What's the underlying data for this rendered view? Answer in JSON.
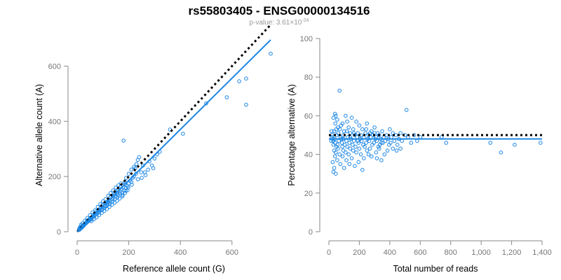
{
  "figure": {
    "title": "rs55803405 - ENSG00000134516",
    "subtitle_prefix": "p-value: 3.61×10",
    "subtitle_exponent": "-24"
  },
  "colors": {
    "points": "#1e88e5",
    "fit_line": "#1e88e5",
    "reference_line": "#000000",
    "axes": "#8a8a8a",
    "tick_labels": "#777777"
  },
  "chart_data": [
    {
      "type": "scatter",
      "title": "",
      "xlabel": "Reference allele count (G)",
      "ylabel": "Alternative allele count (A)",
      "xlim": [
        0,
        750
      ],
      "ylim": [
        0,
        700
      ],
      "x_ticks": [
        0,
        200,
        400,
        600
      ],
      "y_ticks": [
        0,
        200,
        400,
        600
      ],
      "x_tick_labels": [
        "0",
        "200",
        "400",
        "600"
      ],
      "y_tick_labels": [
        "0",
        "200",
        "400",
        "600"
      ],
      "grid": false,
      "legend": "none",
      "reference_line": {
        "style": "dotted",
        "points": [
          [
            0,
            0
          ],
          [
            750,
            750
          ]
        ]
      },
      "fit_line": {
        "style": "solid",
        "points": [
          [
            0,
            0
          ],
          [
            750,
            695
          ]
        ]
      },
      "points": [
        [
          180,
          330
        ],
        [
          750,
          645
        ],
        [
          655,
          460
        ],
        [
          655,
          555
        ],
        [
          628,
          545
        ],
        [
          580,
          487
        ],
        [
          500,
          465
        ],
        [
          410,
          355
        ],
        [
          360,
          370
        ],
        [
          310,
          280
        ],
        [
          300,
          265
        ],
        [
          290,
          240
        ],
        [
          275,
          225
        ],
        [
          265,
          205
        ],
        [
          255,
          240
        ],
        [
          248,
          215
        ],
        [
          240,
          270
        ],
        [
          235,
          260
        ],
        [
          230,
          245
        ],
        [
          225,
          230
        ],
        [
          220,
          200
        ],
        [
          215,
          195
        ],
        [
          210,
          180
        ],
        [
          205,
          185
        ],
        [
          200,
          175
        ],
        [
          195,
          165
        ],
        [
          190,
          158
        ],
        [
          186,
          172
        ],
        [
          182,
          150
        ],
        [
          178,
          160
        ],
        [
          175,
          140
        ],
        [
          172,
          155
        ],
        [
          168,
          162
        ],
        [
          165,
          145
        ],
        [
          160,
          150
        ],
        [
          158,
          133
        ],
        [
          155,
          140
        ],
        [
          150,
          128
        ],
        [
          148,
          145
        ],
        [
          145,
          136
        ],
        [
          140,
          122
        ],
        [
          138,
          130
        ],
        [
          135,
          118
        ],
        [
          130,
          125
        ],
        [
          128,
          110
        ],
        [
          125,
          115
        ],
        [
          120,
          108
        ],
        [
          118,
          100
        ],
        [
          115,
          105
        ],
        [
          110,
          95
        ],
        [
          108,
          102
        ],
        [
          105,
          92
        ],
        [
          100,
          88
        ],
        [
          98,
          96
        ],
        [
          95,
          82
        ],
        [
          90,
          85
        ],
        [
          88,
          78
        ],
        [
          85,
          80
        ],
        [
          80,
          72
        ],
        [
          78,
          68
        ],
        [
          75,
          74
        ],
        [
          70,
          62
        ],
        [
          68,
          66
        ],
        [
          65,
          58
        ],
        [
          60,
          55
        ],
        [
          58,
          52
        ],
        [
          55,
          50
        ],
        [
          52,
          46
        ],
        [
          50,
          48
        ],
        [
          46,
          40
        ],
        [
          45,
          44
        ],
        [
          42,
          37
        ],
        [
          40,
          36
        ],
        [
          38,
          39
        ],
        [
          35,
          31
        ],
        [
          33,
          30
        ],
        [
          30,
          28
        ],
        [
          28,
          25
        ],
        [
          26,
          24
        ],
        [
          24,
          20
        ],
        [
          22,
          23
        ],
        [
          20,
          18
        ],
        [
          18,
          15
        ],
        [
          16,
          17
        ],
        [
          14,
          12
        ],
        [
          12,
          14
        ],
        [
          10,
          9
        ],
        [
          8,
          10
        ],
        [
          200,
          210
        ],
        [
          210,
          225
        ],
        [
          220,
          235
        ],
        [
          190,
          195
        ],
        [
          185,
          180
        ],
        [
          170,
          175
        ],
        [
          160,
          168
        ],
        [
          150,
          160
        ],
        [
          140,
          150
        ],
        [
          130,
          140
        ],
        [
          120,
          130
        ],
        [
          110,
          118
        ],
        [
          100,
          110
        ],
        [
          90,
          100
        ],
        [
          80,
          90
        ],
        [
          70,
          78
        ],
        [
          60,
          70
        ],
        [
          50,
          60
        ],
        [
          40,
          50
        ],
        [
          30,
          40
        ],
        [
          20,
          30
        ],
        [
          15,
          25
        ],
        [
          195,
          150
        ],
        [
          185,
          140
        ],
        [
          175,
          128
        ],
        [
          165,
          120
        ],
        [
          155,
          112
        ],
        [
          145,
          105
        ],
        [
          135,
          98
        ],
        [
          125,
          90
        ],
        [
          115,
          82
        ],
        [
          105,
          75
        ],
        [
          95,
          68
        ],
        [
          85,
          60
        ],
        [
          75,
          52
        ],
        [
          65,
          45
        ],
        [
          55,
          38
        ],
        [
          250,
          195
        ],
        [
          262,
          215
        ],
        [
          280,
          255
        ],
        [
          295,
          230
        ],
        [
          320,
          290
        ],
        [
          235,
          190
        ],
        [
          228,
          210
        ],
        [
          212,
          170
        ],
        [
          198,
          160
        ],
        [
          188,
          148
        ],
        [
          176,
          133
        ],
        [
          166,
          138
        ],
        [
          156,
          125
        ],
        [
          146,
          118
        ],
        [
          136,
          108
        ],
        [
          126,
          100
        ],
        [
          116,
          95
        ],
        [
          106,
          85
        ],
        [
          96,
          78
        ],
        [
          86,
          70
        ],
        [
          76,
          63
        ],
        [
          66,
          55
        ],
        [
          56,
          45
        ],
        [
          48,
          42
        ],
        [
          36,
          34
        ],
        [
          25,
          22
        ],
        [
          19,
          20
        ],
        [
          13,
          11
        ],
        [
          11,
          16
        ],
        [
          9,
          7
        ]
      ]
    },
    {
      "type": "scatter",
      "title": "",
      "xlabel": "Total number of reads",
      "ylabel": "Percentage alternative (A)",
      "xlim": [
        0,
        1400
      ],
      "ylim": [
        0,
        100
      ],
      "x_ticks": [
        0,
        200,
        400,
        600,
        800,
        1000,
        1200,
        1400
      ],
      "y_ticks": [
        0,
        20,
        40,
        60,
        80,
        100
      ],
      "x_tick_labels": [
        "0",
        "200",
        "400",
        "600",
        "800",
        "1,000",
        "1,200",
        "1,400"
      ],
      "y_tick_labels": [
        "0",
        "20",
        "40",
        "60",
        "80",
        "100"
      ],
      "grid": false,
      "legend": "none",
      "reference_line": {
        "style": "dotted",
        "points": [
          [
            0,
            50
          ],
          [
            1400,
            50
          ]
        ]
      },
      "fit_line": {
        "style": "solid",
        "points": [
          [
            0,
            48
          ],
          [
            1400,
            48
          ]
        ]
      },
      "points": [
        [
          70,
          73
        ],
        [
          510,
          63
        ],
        [
          40,
          61
        ],
        [
          45,
          60
        ],
        [
          110,
          60
        ],
        [
          30,
          59
        ],
        [
          150,
          59
        ],
        [
          55,
          58
        ],
        [
          180,
          57
        ],
        [
          120,
          57
        ],
        [
          90,
          56
        ],
        [
          250,
          56
        ],
        [
          200,
          55
        ],
        [
          80,
          55
        ],
        [
          130,
          54
        ],
        [
          60,
          54
        ],
        [
          300,
          54
        ],
        [
          160,
          53
        ],
        [
          400,
          53
        ],
        [
          220,
          53
        ],
        [
          35,
          52
        ],
        [
          100,
          52
        ],
        [
          280,
          52
        ],
        [
          350,
          52
        ],
        [
          140,
          51
        ],
        [
          190,
          51
        ],
        [
          240,
          51
        ],
        [
          320,
          51
        ],
        [
          420,
          51
        ],
        [
          470,
          51
        ],
        [
          50,
          50
        ],
        [
          170,
          50
        ],
        [
          210,
          50
        ],
        [
          260,
          50
        ],
        [
          290,
          50
        ],
        [
          330,
          50
        ],
        [
          380,
          50
        ],
        [
          440,
          50
        ],
        [
          500,
          50
        ],
        [
          560,
          50
        ],
        [
          20,
          49
        ],
        [
          75,
          49
        ],
        [
          125,
          49
        ],
        [
          185,
          49
        ],
        [
          230,
          49
        ],
        [
          275,
          49
        ],
        [
          310,
          49
        ],
        [
          360,
          49
        ],
        [
          410,
          49
        ],
        [
          520,
          49
        ],
        [
          600,
          49
        ],
        [
          740,
          49
        ],
        [
          25,
          48
        ],
        [
          95,
          48
        ],
        [
          145,
          48
        ],
        [
          205,
          48
        ],
        [
          255,
          48
        ],
        [
          305,
          48
        ],
        [
          340,
          48
        ],
        [
          390,
          48
        ],
        [
          460,
          48
        ],
        [
          15,
          47
        ],
        [
          65,
          47
        ],
        [
          115,
          47
        ],
        [
          165,
          47
        ],
        [
          215,
          47
        ],
        [
          265,
          47
        ],
        [
          315,
          47
        ],
        [
          370,
          47
        ],
        [
          430,
          47
        ],
        [
          480,
          47
        ],
        [
          580,
          47
        ],
        [
          40,
          46
        ],
        [
          85,
          46
        ],
        [
          135,
          46
        ],
        [
          195,
          46
        ],
        [
          245,
          46
        ],
        [
          295,
          46
        ],
        [
          345,
          46
        ],
        [
          405,
          46
        ],
        [
          540,
          46
        ],
        [
          770,
          46
        ],
        [
          1060,
          46
        ],
        [
          1220,
          45
        ],
        [
          1390,
          46
        ],
        [
          30,
          45
        ],
        [
          105,
          45
        ],
        [
          155,
          45
        ],
        [
          225,
          45
        ],
        [
          285,
          45
        ],
        [
          335,
          45
        ],
        [
          395,
          45
        ],
        [
          450,
          45
        ],
        [
          50,
          44
        ],
        [
          120,
          44
        ],
        [
          175,
          44
        ],
        [
          235,
          44
        ],
        [
          325,
          44
        ],
        [
          420,
          43
        ],
        [
          470,
          43
        ],
        [
          60,
          43
        ],
        [
          140,
          43
        ],
        [
          200,
          43
        ],
        [
          270,
          43
        ],
        [
          35,
          42
        ],
        [
          95,
          42
        ],
        [
          160,
          42
        ],
        [
          250,
          42
        ],
        [
          385,
          42
        ],
        [
          445,
          42
        ],
        [
          1130,
          41
        ],
        [
          45,
          41
        ],
        [
          110,
          41
        ],
        [
          180,
          41
        ],
        [
          310,
          41
        ],
        [
          70,
          40
        ],
        [
          130,
          40
        ],
        [
          210,
          40
        ],
        [
          260,
          40
        ],
        [
          40,
          39
        ],
        [
          90,
          39
        ],
        [
          150,
          38
        ],
        [
          230,
          38
        ],
        [
          280,
          39
        ],
        [
          55,
          37
        ],
        [
          115,
          37
        ],
        [
          195,
          36
        ],
        [
          25,
          36
        ],
        [
          75,
          35
        ],
        [
          135,
          35
        ],
        [
          170,
          34
        ],
        [
          35,
          33
        ],
        [
          100,
          33
        ],
        [
          220,
          32
        ],
        [
          30,
          31
        ],
        [
          45,
          30
        ],
        [
          345,
          37
        ],
        [
          365,
          40
        ],
        [
          330,
          43
        ],
        [
          315,
          38
        ],
        [
          355,
          46
        ],
        [
          300,
          51
        ],
        [
          270,
          51
        ],
        [
          245,
          53
        ],
        [
          190,
          47
        ],
        [
          165,
          51
        ],
        [
          140,
          49
        ],
        [
          118,
          52
        ],
        [
          95,
          50
        ],
        [
          82,
          48
        ],
        [
          62,
          51
        ],
        [
          48,
          53
        ],
        [
          38,
          48
        ],
        [
          22,
          50
        ],
        [
          18,
          52
        ],
        [
          28,
          47
        ],
        [
          42,
          56
        ],
        [
          58,
          45
        ],
        [
          72,
          53
        ],
        [
          88,
          44
        ]
      ]
    }
  ]
}
